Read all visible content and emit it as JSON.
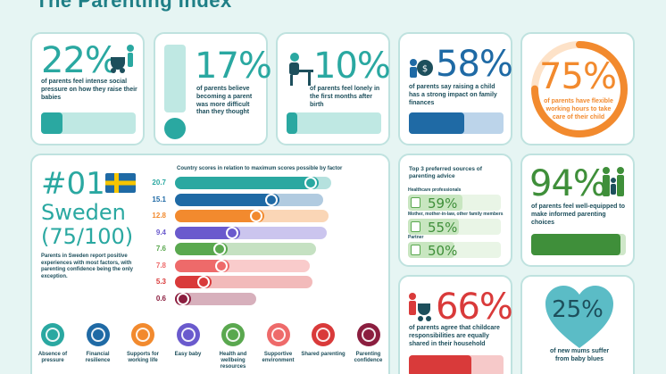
{
  "title": "The Parenting Index",
  "stats": {
    "s1": {
      "value": "22%",
      "text": "of parents feel intense social pressure on how they raise their babies",
      "color": "#2aa8a1",
      "icon": "parent-pushing-stroller-icon"
    },
    "s2": {
      "value": "17%",
      "text": "of parents believe becoming a parent was more difficult than they thought",
      "color": "#2aa8a1",
      "icon": "exclamation-icon"
    },
    "s3": {
      "value": "10%",
      "text": "of parents feel lonely in the first months after birth",
      "color": "#2aa8a1",
      "icon": "person-at-desk-icon"
    },
    "s4": {
      "value": "58%",
      "text": "of parents say raising a child has a strong impact on family finances",
      "color": "#1f6aa5",
      "icon": "money-bag-icon"
    },
    "s5": {
      "value": "75%",
      "text": "of parents have flexible working hours to take care of their child",
      "color": "#f28a2e",
      "icon": "progress-ring-icon"
    },
    "s6": {
      "value": "94%",
      "text": "of parents feel well-equipped to make informed parenting choices",
      "color": "#3f8f3a",
      "icon": "family-icon"
    },
    "s7": {
      "value": "66%",
      "text": "of parents agree that childcare responsibilities are equally shared in their household",
      "color": "#d93a3a",
      "icon": "parent-with-stroller-icon"
    },
    "s8": {
      "value": "25%",
      "text": "of new mums suffer from baby blues",
      "color": "#5bbcc6",
      "icon": "heart-icon"
    }
  },
  "country": {
    "rank": "#01",
    "name": "Sweden",
    "score": "(75/100)",
    "flag_icon": "sweden-flag-icon",
    "summary": "Parents in Sweden report positive experiences with most factors, with parenting confidence being the only exception.",
    "chart_title": "Country scores in relation to maximum scores possible by factor"
  },
  "chart_data": {
    "type": "bar",
    "title": "Country scores in relation to maximum scores possible by factor",
    "categories": [
      "Absence of pressure",
      "Financial resilience",
      "Supports for working life",
      "Easy baby",
      "Health and wellbeing resources",
      "Supportive environment",
      "Shared parenting",
      "Parenting confidence"
    ],
    "values": [
      20.7,
      15.1,
      12.8,
      9.4,
      7.6,
      7.8,
      5.3,
      0.6
    ],
    "labels": [
      "20.7",
      "15.1",
      "12.8",
      "9.4",
      "7.6",
      "7.8",
      "5.3",
      "0.6"
    ],
    "max_fraction": [
      1.0,
      0.95,
      0.98,
      0.97,
      0.9,
      0.86,
      0.88,
      0.52
    ],
    "colors": [
      "#2aa8a1",
      "#1f6aa5",
      "#f28a2e",
      "#6a5acd",
      "#5aa84f",
      "#ee6a6a",
      "#d93a3a",
      "#8b1e3f"
    ]
  },
  "factors": [
    {
      "label": "Absence of pressure",
      "color": "#2aa8a1",
      "icon": "pressure-icon"
    },
    {
      "label": "Financial resilience",
      "color": "#1f6aa5",
      "icon": "finance-icon"
    },
    {
      "label": "Supports for working life",
      "color": "#f28a2e",
      "icon": "work-support-icon"
    },
    {
      "label": "Easy baby",
      "color": "#6a5acd",
      "icon": "baby-icon"
    },
    {
      "label": "Health and wellbeing resources",
      "color": "#5aa84f",
      "icon": "health-icon"
    },
    {
      "label": "Supportive environment",
      "color": "#ee6a6a",
      "icon": "environment-icon"
    },
    {
      "label": "Shared parenting",
      "color": "#d93a3a",
      "icon": "shared-parenting-icon"
    },
    {
      "label": "Parenting confidence",
      "color": "#8b1e3f",
      "icon": "confidence-icon"
    }
  ],
  "sources": {
    "title": "Top 3 preferred sources of parenting advice",
    "items": [
      {
        "label": "Healthcare professionals",
        "value": "59%",
        "fraction": 0.59
      },
      {
        "label": "Mother, mother-in-law, other family members",
        "value": "55%",
        "fraction": 0.55
      },
      {
        "label": "Partner",
        "value": "50%",
        "fraction": 0.5
      }
    ]
  },
  "progress": {
    "s1": 0.22,
    "s3": 0.1,
    "s4": 0.58,
    "s6": 0.94,
    "s7": 0.66
  }
}
